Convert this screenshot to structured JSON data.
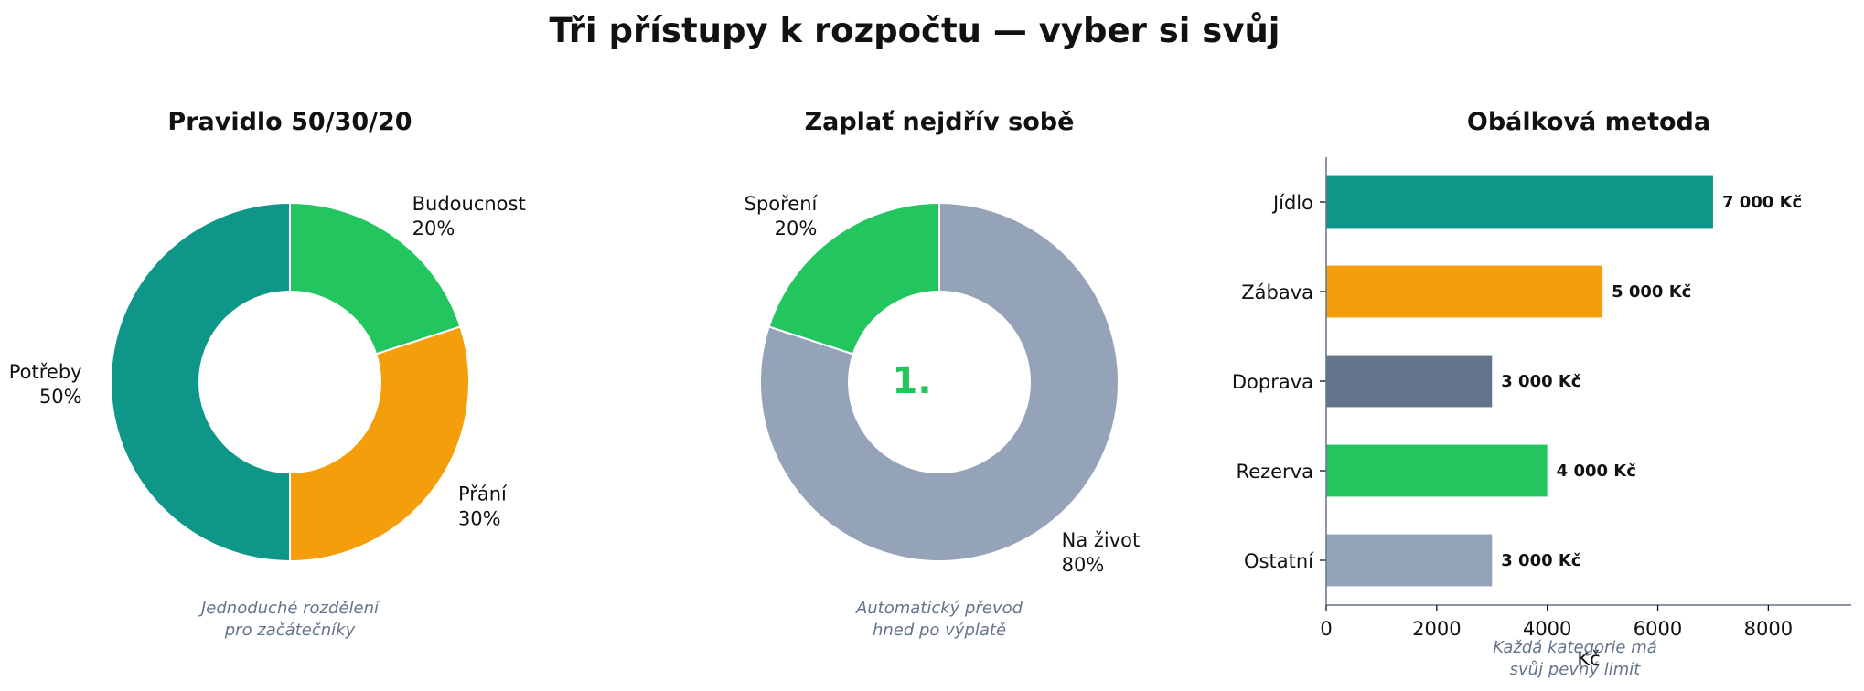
{
  "title": "Tři přístupy k rozpočtu — vyber si svůj",
  "colors": {
    "teal": "#0e9688",
    "green": "#22c55e",
    "orange": "#f59e0b",
    "slate": "#64748b",
    "gray_blue": "#94a3b8",
    "caption": "#64748b",
    "text": "#111111"
  },
  "chart_data": [
    {
      "type": "pie",
      "variant": "donut",
      "title": "Pravidlo 50/30/20",
      "slices": [
        {
          "label": "Budoucnost",
          "value": 20,
          "pct_label": "20%",
          "color": "#22c55e"
        },
        {
          "label": "Přání",
          "value": 30,
          "pct_label": "30%",
          "color": "#f59e0b"
        },
        {
          "label": "Potřeby",
          "value": 50,
          "pct_label": "50%",
          "color": "#0e9688"
        }
      ],
      "caption": [
        "Jednoduché rozdělení",
        "pro začátečníky"
      ]
    },
    {
      "type": "pie",
      "variant": "donut",
      "title": "Zaplať nejdřív sobě",
      "center_label": "1.",
      "slices": [
        {
          "label": "Na život",
          "value": 80,
          "pct_label": "80%",
          "color": "#94a3b8"
        },
        {
          "label": "Spoření",
          "value": 20,
          "pct_label": "20%",
          "color": "#22c55e"
        }
      ],
      "caption": [
        "Automatický převod",
        "hned po výplatě"
      ]
    },
    {
      "type": "bar",
      "orientation": "horizontal",
      "title": "Obálková metoda",
      "categories": [
        "Jídlo",
        "Zábava",
        "Doprava",
        "Rezerva",
        "Ostatní"
      ],
      "values": [
        7000,
        5000,
        3000,
        4000,
        3000
      ],
      "value_labels": [
        "7 000 Kč",
        "5 000 Kč",
        "3 000 Kč",
        "4 000 Kč",
        "3 000 Kč"
      ],
      "colors": [
        "#0e9688",
        "#f59e0b",
        "#64748b",
        "#22c55e",
        "#94a3b8"
      ],
      "xlabel": "Kč",
      "xlim": [
        0,
        9500
      ],
      "xticks": [
        0,
        2000,
        4000,
        6000,
        8000
      ],
      "xtick_labels": [
        "0",
        "2000",
        "4000",
        "6000",
        "8000"
      ],
      "grid": false,
      "caption": [
        "Každá kategorie má",
        "svůj pevný limit"
      ]
    }
  ]
}
